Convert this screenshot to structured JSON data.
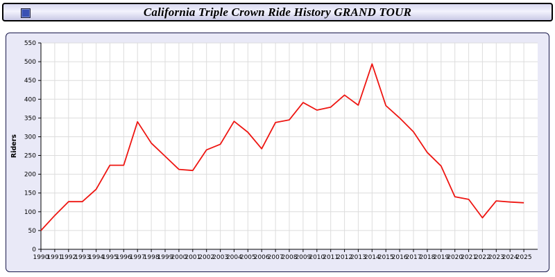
{
  "title": "California Triple Crown Ride History GRAND TOUR",
  "colors": {
    "line": "#ee1511",
    "panel_bg": "#e9e9f7",
    "grid": "#dcdcdc",
    "axis": "#000000"
  },
  "chart_data": {
    "type": "line",
    "title": "California Triple Crown Ride History GRAND TOUR",
    "xlabel": "",
    "ylabel": "Riders",
    "ylim": [
      0,
      550
    ],
    "ytick_interval": 50,
    "grid": true,
    "legend": "none",
    "x": [
      1990,
      1991,
      1992,
      1993,
      1994,
      1995,
      1996,
      1997,
      1998,
      1999,
      2000,
      2001,
      2002,
      2003,
      2004,
      2005,
      2006,
      2007,
      2008,
      2009,
      2010,
      2011,
      2012,
      2013,
      2014,
      2015,
      2016,
      2017,
      2018,
      2019,
      2020,
      2021,
      2022,
      2023,
      2024,
      2025
    ],
    "series": [
      {
        "name": "Riders",
        "color": "#ee1511",
        "values": [
          50,
          90,
          127,
          127,
          160,
          224,
          224,
          340,
          283,
          248,
          213,
          210,
          265,
          280,
          341,
          312,
          268,
          338,
          345,
          391,
          371,
          379,
          411,
          384,
          494,
          383,
          350,
          313,
          258,
          222,
          140,
          133,
          84,
          129,
          126,
          124
        ]
      }
    ]
  }
}
